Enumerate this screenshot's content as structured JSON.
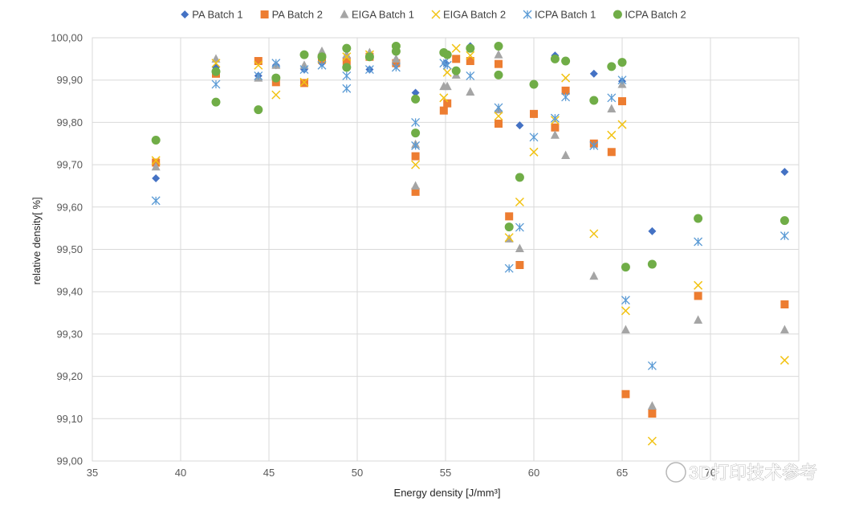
{
  "chart_data": {
    "type": "scatter",
    "xlabel": "Energy density [J/mm³]",
    "ylabel": "relative density[ %]",
    "xlim": [
      35,
      75
    ],
    "ylim": [
      99.0,
      100.0
    ],
    "x_ticks": [
      "35",
      "40",
      "45",
      "50",
      "55",
      "60",
      "65",
      "70"
    ],
    "y_ticks": [
      "99,00",
      "99,10",
      "99,20",
      "99,30",
      "99,40",
      "99,50",
      "99,60",
      "99,70",
      "99,80",
      "99,90",
      "100,00"
    ],
    "grid": true,
    "legend_position": "top",
    "watermark": "3D打印技术参考",
    "series": [
      {
        "name": "PA Batch 1",
        "marker": "diamond",
        "color": "#4472C4",
        "points": [
          [
            38.6,
            99.668
          ],
          [
            42,
            99.93
          ],
          [
            44.4,
            99.91
          ],
          [
            45.4,
            99.935
          ],
          [
            47,
            99.925
          ],
          [
            48,
            99.94
          ],
          [
            49.4,
            99.935
          ],
          [
            50.7,
            99.925
          ],
          [
            52.2,
            99.935
          ],
          [
            53.3,
            99.87
          ],
          [
            55,
            99.94
          ],
          [
            56.4,
            99.98
          ],
          [
            58,
            99.98
          ],
          [
            59.2,
            99.793
          ],
          [
            61.2,
            99.958
          ],
          [
            63.4,
            99.915
          ],
          [
            65,
            99.897
          ],
          [
            66.7,
            99.543
          ],
          [
            74.2,
            99.683
          ]
        ]
      },
      {
        "name": "PA Batch 2",
        "marker": "square",
        "color": "#ED7D31",
        "points": [
          [
            38.6,
            99.705
          ],
          [
            42,
            99.915
          ],
          [
            44.4,
            99.945
          ],
          [
            45.4,
            99.895
          ],
          [
            47,
            99.893
          ],
          [
            48,
            99.948
          ],
          [
            49.4,
            99.945
          ],
          [
            50.7,
            99.955
          ],
          [
            52.2,
            99.94
          ],
          [
            53.3,
            99.636
          ],
          [
            53.3,
            99.72
          ],
          [
            54.9,
            99.828
          ],
          [
            55.1,
            99.845
          ],
          [
            55.6,
            99.95
          ],
          [
            56.4,
            99.945
          ],
          [
            58,
            99.938
          ],
          [
            58,
            99.797
          ],
          [
            58.6,
            99.578
          ],
          [
            59.2,
            99.463
          ],
          [
            60,
            99.82
          ],
          [
            61.2,
            99.788
          ],
          [
            61.8,
            99.875
          ],
          [
            63.4,
            99.75
          ],
          [
            64.4,
            99.73
          ],
          [
            65,
            99.85
          ],
          [
            65.2,
            99.158
          ],
          [
            66.7,
            99.112
          ],
          [
            69.3,
            99.39
          ],
          [
            74.2,
            99.37
          ]
        ]
      },
      {
        "name": "EIGA Batch 1",
        "marker": "triangle",
        "color": "#A5A5A5",
        "points": [
          [
            38.6,
            99.695
          ],
          [
            42,
            99.95
          ],
          [
            44.4,
            99.905
          ],
          [
            45.4,
            99.935
          ],
          [
            47,
            99.935
          ],
          [
            48,
            99.968
          ],
          [
            49.4,
            99.96
          ],
          [
            50.7,
            99.965
          ],
          [
            52.2,
            99.95
          ],
          [
            53.3,
            99.65
          ],
          [
            53.3,
            99.748
          ],
          [
            54.9,
            99.885
          ],
          [
            55.1,
            99.885
          ],
          [
            55.6,
            99.912
          ],
          [
            56.4,
            99.872
          ],
          [
            58,
            99.96
          ],
          [
            58,
            99.83
          ],
          [
            58.6,
            99.525
          ],
          [
            59.2,
            99.502
          ],
          [
            61.2,
            99.77
          ],
          [
            61.8,
            99.722
          ],
          [
            63.4,
            99.437
          ],
          [
            64.4,
            99.832
          ],
          [
            65,
            99.89
          ],
          [
            65.2,
            99.31
          ],
          [
            66.7,
            99.13
          ],
          [
            69.3,
            99.333
          ],
          [
            74.2,
            99.31
          ]
        ]
      },
      {
        "name": "EIGA Batch 2",
        "marker": "x",
        "color": "#F2C314",
        "points": [
          [
            38.6,
            99.71
          ],
          [
            42,
            99.94
          ],
          [
            44.4,
            99.935
          ],
          [
            45.4,
            99.865
          ],
          [
            47,
            99.895
          ],
          [
            48,
            99.95
          ],
          [
            49.4,
            99.955
          ],
          [
            50.7,
            99.96
          ],
          [
            52.2,
            99.975
          ],
          [
            53.3,
            99.7
          ],
          [
            54.9,
            99.858
          ],
          [
            55.1,
            99.918
          ],
          [
            55.6,
            99.975
          ],
          [
            56.4,
            99.958
          ],
          [
            58,
            99.815
          ],
          [
            58.6,
            99.528
          ],
          [
            59.2,
            99.612
          ],
          [
            60,
            99.73
          ],
          [
            61.2,
            99.805
          ],
          [
            61.8,
            99.905
          ],
          [
            63.4,
            99.537
          ],
          [
            64.4,
            99.77
          ],
          [
            65,
            99.795
          ],
          [
            65.2,
            99.355
          ],
          [
            66.7,
            99.047
          ],
          [
            69.3,
            99.415
          ],
          [
            74.2,
            99.238
          ]
        ]
      },
      {
        "name": "ICPA Batch 1",
        "marker": "asterisk",
        "color": "#5B9BD5",
        "points": [
          [
            38.6,
            99.615
          ],
          [
            42,
            99.89
          ],
          [
            44.4,
            99.91
          ],
          [
            45.4,
            99.94
          ],
          [
            47,
            99.925
          ],
          [
            48,
            99.935
          ],
          [
            49.4,
            99.88
          ],
          [
            49.4,
            99.91
          ],
          [
            50.7,
            99.925
          ],
          [
            52.2,
            99.93
          ],
          [
            53.3,
            99.8
          ],
          [
            53.3,
            99.745
          ],
          [
            54.9,
            99.94
          ],
          [
            55.1,
            99.935
          ],
          [
            56.4,
            99.91
          ],
          [
            58,
            99.835
          ],
          [
            58.6,
            99.455
          ],
          [
            59.2,
            99.552
          ],
          [
            60,
            99.765
          ],
          [
            61.2,
            99.81
          ],
          [
            61.8,
            99.86
          ],
          [
            63.4,
            99.745
          ],
          [
            64.4,
            99.858
          ],
          [
            65,
            99.9
          ],
          [
            65.2,
            99.38
          ],
          [
            66.7,
            99.225
          ],
          [
            69.3,
            99.518
          ],
          [
            74.2,
            99.532
          ]
        ]
      },
      {
        "name": "ICPA Batch 2",
        "marker": "circle",
        "color": "#70AD47",
        "points": [
          [
            38.6,
            99.758
          ],
          [
            42,
            99.848
          ],
          [
            42,
            99.92
          ],
          [
            44.4,
            99.83
          ],
          [
            45.4,
            99.905
          ],
          [
            47,
            99.96
          ],
          [
            48,
            99.955
          ],
          [
            49.4,
            99.975
          ],
          [
            49.4,
            99.93
          ],
          [
            50.7,
            99.955
          ],
          [
            52.2,
            99.98
          ],
          [
            52.2,
            99.968
          ],
          [
            53.3,
            99.775
          ],
          [
            53.3,
            99.855
          ],
          [
            54.9,
            99.965
          ],
          [
            55.1,
            99.96
          ],
          [
            55.6,
            99.922
          ],
          [
            56.4,
            99.975
          ],
          [
            58,
            99.98
          ],
          [
            58,
            99.912
          ],
          [
            58.6,
            99.553
          ],
          [
            59.2,
            99.67
          ],
          [
            60,
            99.89
          ],
          [
            61.2,
            99.95
          ],
          [
            61.8,
            99.945
          ],
          [
            63.4,
            99.852
          ],
          [
            64.4,
            99.932
          ],
          [
            65,
            99.942
          ],
          [
            65.2,
            99.458
          ],
          [
            66.7,
            99.465
          ],
          [
            69.3,
            99.573
          ],
          [
            74.2,
            99.568
          ]
        ]
      }
    ]
  }
}
